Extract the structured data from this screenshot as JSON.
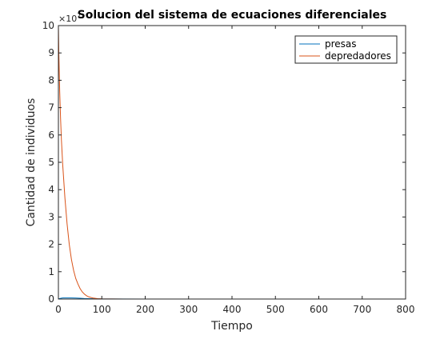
{
  "chart_data": {
    "type": "line",
    "title": "Solucion del sistema de ecuaciones diferenciales",
    "xlabel": "Tiempo",
    "ylabel": "Cantidad de individuos",
    "y_exponent_label": "×10",
    "y_exponent_power": "7",
    "xlim": [
      0,
      800
    ],
    "ylim": [
      0,
      10
    ],
    "xticks": [
      0,
      100,
      200,
      300,
      400,
      500,
      600,
      700,
      800
    ],
    "yticks": [
      0,
      1,
      2,
      3,
      4,
      5,
      6,
      7,
      8,
      9,
      10
    ],
    "grid": false,
    "legend_location": "top-right",
    "series": [
      {
        "name": "presas",
        "color": "#0072BD",
        "x": [
          0,
          1,
          3,
          6,
          10,
          20,
          30,
          40,
          50,
          60,
          70,
          80,
          100,
          200,
          400,
          800
        ],
        "y": [
          0,
          0.01,
          0.02,
          0.03,
          0.04,
          0.04,
          0.04,
          0.035,
          0.03,
          0.02,
          0.015,
          0.01,
          0.005,
          0,
          0,
          0
        ]
      },
      {
        "name": "depredadores",
        "color": "#D95319",
        "x": [
          0,
          1,
          2,
          3,
          5,
          7,
          10,
          15,
          20,
          25,
          30,
          35,
          40,
          45,
          50,
          55,
          60,
          65,
          70,
          80,
          90,
          100,
          150,
          200,
          400,
          800
        ],
        "y": [
          10,
          9.0,
          8.3,
          7.6,
          6.6,
          5.8,
          4.9,
          3.7,
          2.75,
          2.0,
          1.45,
          1.05,
          0.75,
          0.55,
          0.38,
          0.26,
          0.18,
          0.12,
          0.08,
          0.035,
          0.015,
          0.006,
          0,
          0,
          0,
          0
        ]
      }
    ]
  }
}
